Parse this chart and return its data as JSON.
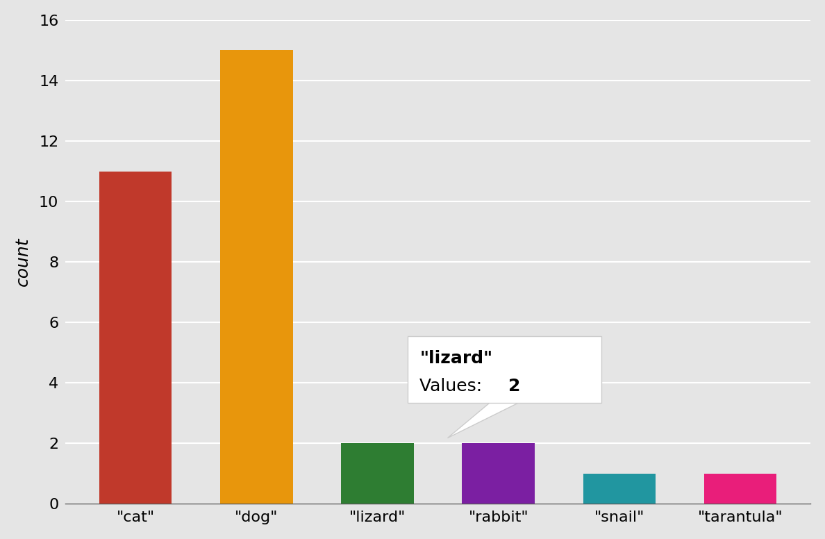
{
  "categories": [
    "\"cat\"",
    "\"dog\"",
    "\"lizard\"",
    "\"rabbit\"",
    "\"snail\"",
    "\"tarantula\""
  ],
  "values": [
    11,
    15,
    2,
    2,
    1,
    1
  ],
  "bar_colors": [
    "#c0392b",
    "#e8960c",
    "#2e7d32",
    "#7b1fa2",
    "#2196a0",
    "#e91e7a"
  ],
  "ylabel": "count",
  "ylim": [
    0,
    16
  ],
  "yticks": [
    0,
    2,
    4,
    6,
    8,
    10,
    12,
    14,
    16
  ],
  "background_color": "#e5e5e5",
  "annotation_index": 2,
  "annotation_line1": "\"lizard\"",
  "annotation_line2_prefix": "Values: ",
  "annotation_line2_value": "2",
  "grid_color": "#ffffff",
  "spine_color": "#555555",
  "tick_fontsize": 16,
  "ylabel_fontsize": 18,
  "annotation_fontsize": 18
}
